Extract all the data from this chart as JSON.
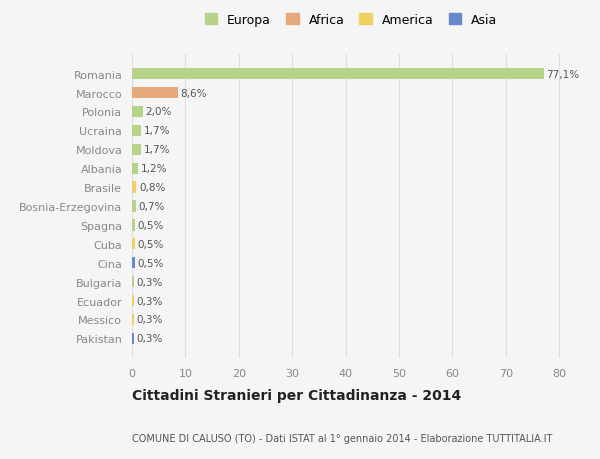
{
  "countries": [
    "Romania",
    "Marocco",
    "Polonia",
    "Ucraina",
    "Moldova",
    "Albania",
    "Brasile",
    "Bosnia-Erzegovina",
    "Spagna",
    "Cuba",
    "Cina",
    "Bulgaria",
    "Ecuador",
    "Messico",
    "Pakistan"
  ],
  "values": [
    77.1,
    8.6,
    2.0,
    1.7,
    1.7,
    1.2,
    0.8,
    0.7,
    0.5,
    0.5,
    0.5,
    0.3,
    0.3,
    0.3,
    0.3
  ],
  "labels": [
    "77,1%",
    "8,6%",
    "2,0%",
    "1,7%",
    "1,7%",
    "1,2%",
    "0,8%",
    "0,7%",
    "0,5%",
    "0,5%",
    "0,5%",
    "0,3%",
    "0,3%",
    "0,3%",
    "0,3%"
  ],
  "colors": [
    "#b5d48a",
    "#e8a97a",
    "#b5d48a",
    "#b5d48a",
    "#b5d48a",
    "#b5d48a",
    "#f0d060",
    "#b5d48a",
    "#b5d48a",
    "#f0d060",
    "#6888cc",
    "#b5d48a",
    "#f0d060",
    "#f0d060",
    "#6888cc"
  ],
  "legend_labels": [
    "Europa",
    "Africa",
    "America",
    "Asia"
  ],
  "legend_colors": [
    "#b5d48a",
    "#e8a97a",
    "#f0d060",
    "#6888cc"
  ],
  "title": "Cittadini Stranieri per Cittadinanza - 2014",
  "subtitle": "COMUNE DI CALUSO (TO) - Dati ISTAT al 1° gennaio 2014 - Elaborazione TUTTITALIA.IT",
  "xlim": [
    0,
    82
  ],
  "xticks": [
    0,
    10,
    20,
    30,
    40,
    50,
    60,
    70,
    80
  ],
  "bg_color": "#f5f5f5",
  "grid_color": "#dddddd"
}
